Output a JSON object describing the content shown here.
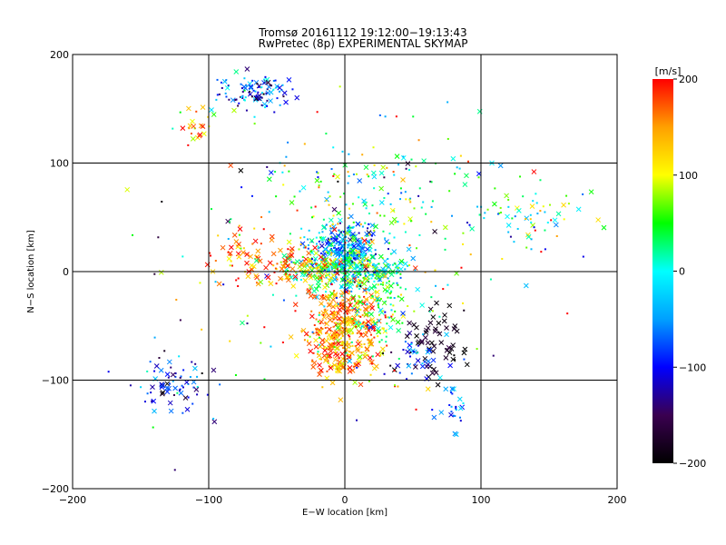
{
  "chart_data": {
    "type": "scatter",
    "title": "Tromsø 20161112 19:12:00−19:13:43",
    "subtitle": "RwPretec (8p) EXPERIMENTAL SKYMAP",
    "xlabel": "E−W location [km]",
    "ylabel": "N−S location [km]",
    "xlim": [
      -200,
      200
    ],
    "ylim": [
      -200,
      200
    ],
    "xticks": [
      -200,
      -100,
      0,
      100,
      200
    ],
    "yticks": [
      -200,
      -100,
      0,
      100,
      200
    ],
    "grid": true,
    "marker_types": [
      "dot",
      "cross"
    ],
    "colorbar": {
      "label": "[m/s]",
      "range": [
        -200,
        200
      ],
      "ticks": [
        200,
        100,
        0,
        -100,
        -200
      ],
      "colormap": [
        "#000000",
        "#3a0050",
        "#0000ff",
        "#00a0ff",
        "#00ffff",
        "#00ff00",
        "#ffff00",
        "#ffa000",
        "#ff0000"
      ]
    },
    "clusters": [
      {
        "x": -65,
        "y": 165,
        "sx": 14,
        "sy": 9,
        "v": -80,
        "sv": 50,
        "n": 110,
        "cross_frac": 0.25
      },
      {
        "x": -110,
        "y": 135,
        "sx": 8,
        "sy": 8,
        "v": 130,
        "sv": 50,
        "n": 22,
        "cross_frac": 0.5
      },
      {
        "x": 0,
        "y": 20,
        "sx": 13,
        "sy": 14,
        "v": -40,
        "sv": 55,
        "n": 320,
        "cross_frac": 0.4
      },
      {
        "x": 5,
        "y": 0,
        "sx": 22,
        "sy": 12,
        "v": 20,
        "sv": 50,
        "n": 260,
        "cross_frac": 0.35
      },
      {
        "x": -35,
        "y": 5,
        "sx": 18,
        "sy": 9,
        "v": 150,
        "sv": 45,
        "n": 110,
        "cross_frac": 0.55
      },
      {
        "x": 0,
        "y": -40,
        "sx": 14,
        "sy": 18,
        "v": 160,
        "sv": 40,
        "n": 230,
        "cross_frac": 0.5
      },
      {
        "x": -5,
        "y": -70,
        "sx": 14,
        "sy": 14,
        "v": 150,
        "sv": 45,
        "n": 190,
        "cross_frac": 0.55
      },
      {
        "x": 20,
        "y": -30,
        "sx": 16,
        "sy": 22,
        "v": 40,
        "sv": 60,
        "n": 140,
        "cross_frac": 0.3
      },
      {
        "x": 70,
        "y": -65,
        "sx": 12,
        "sy": 18,
        "v": -190,
        "sv": 15,
        "n": 55,
        "cross_frac": 0.9
      },
      {
        "x": 50,
        "y": -80,
        "sx": 12,
        "sy": 12,
        "v": -110,
        "sv": 50,
        "n": 45,
        "cross_frac": 0.6
      },
      {
        "x": 80,
        "y": -125,
        "sx": 5,
        "sy": 16,
        "v": -70,
        "sv": 45,
        "n": 25,
        "cross_frac": 0.4
      },
      {
        "x": -125,
        "y": -105,
        "sx": 14,
        "sy": 13,
        "v": -100,
        "sv": 45,
        "n": 75,
        "cross_frac": 0.4
      },
      {
        "x": -80,
        "y": 15,
        "sx": 12,
        "sy": 12,
        "v": 170,
        "sv": 40,
        "n": 40,
        "cross_frac": 0.5
      },
      {
        "x": 140,
        "y": 55,
        "sx": 20,
        "sy": 15,
        "v": 40,
        "sv": 70,
        "n": 55,
        "cross_frac": 0.35
      },
      {
        "x": 25,
        "y": 70,
        "sx": 45,
        "sy": 30,
        "v": 20,
        "sv": 90,
        "n": 180,
        "cross_frac": 0.2
      },
      {
        "x": 0,
        "y": 0,
        "sx": 95,
        "sy": 80,
        "v": 20,
        "sv": 110,
        "n": 150,
        "cross_frac": 0.3
      }
    ]
  }
}
